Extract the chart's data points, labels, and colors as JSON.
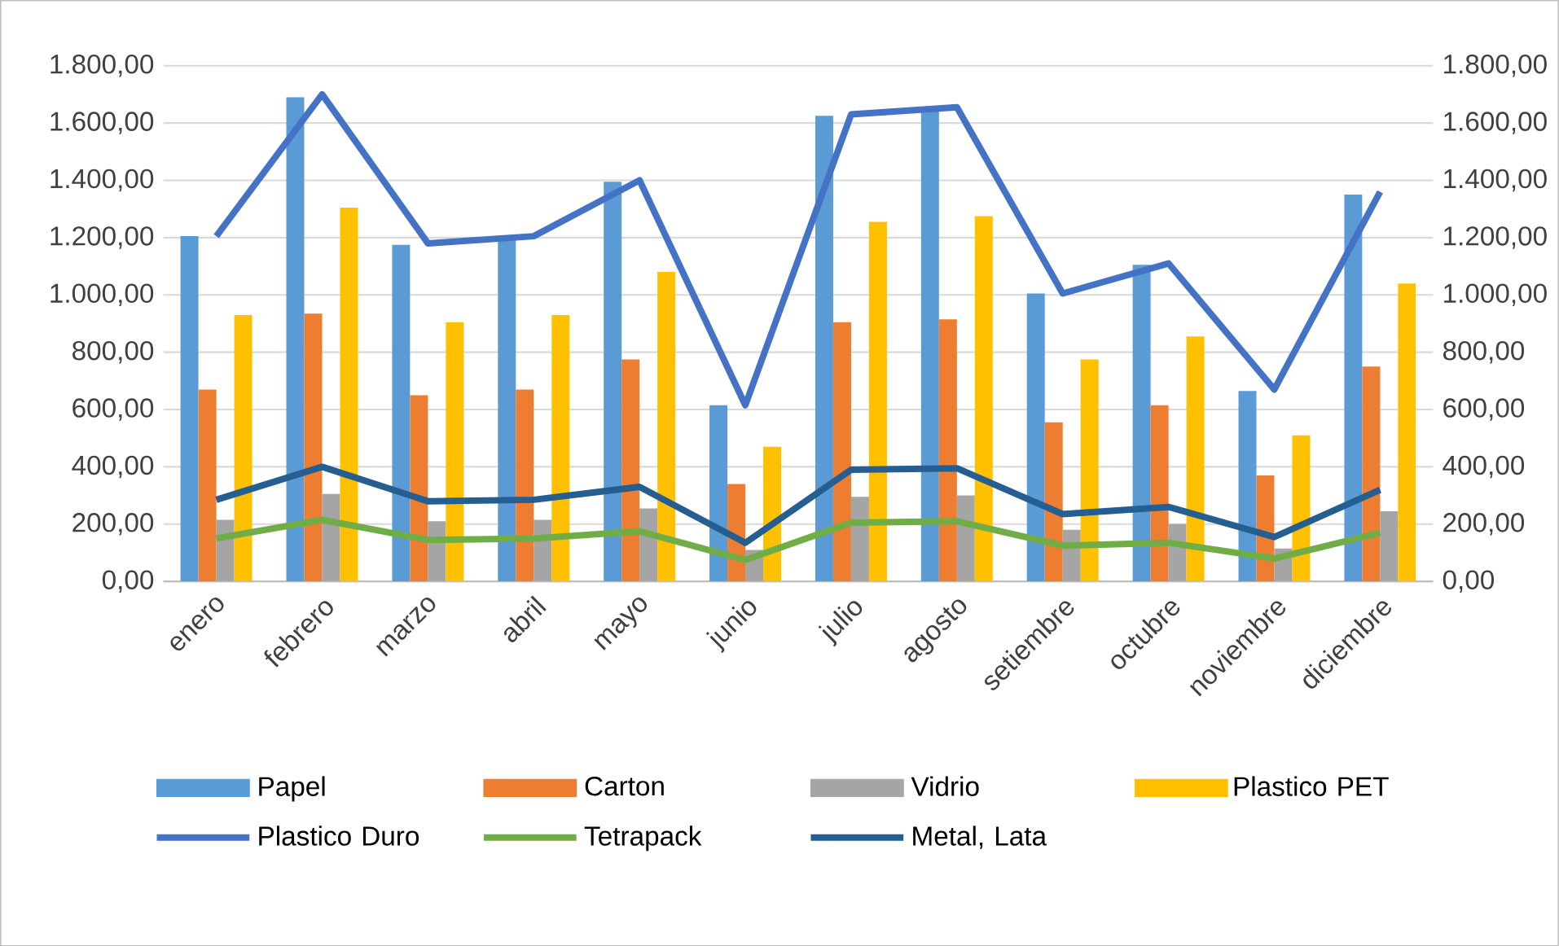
{
  "chart_data": {
    "type": "bar",
    "categories": [
      "enero",
      "febrero",
      "marzo",
      "abril",
      "mayo",
      "junio",
      "julio",
      "agosto",
      "setiembre",
      "octubre",
      "noviembre",
      "diciembre"
    ],
    "series": [
      {
        "name": "Papel",
        "color": "#5b9bd5",
        "values": [
          1205,
          1690,
          1175,
          1205,
          1395,
          615,
          1625,
          1650,
          1005,
          1105,
          665,
          1350
        ]
      },
      {
        "name": "Carton",
        "color": "#ed7d31",
        "values": [
          670,
          935,
          650,
          670,
          775,
          340,
          905,
          915,
          555,
          615,
          370,
          750
        ]
      },
      {
        "name": "Vidrio",
        "color": "#a5a5a5",
        "values": [
          215,
          305,
          210,
          215,
          255,
          110,
          295,
          300,
          180,
          200,
          115,
          245
        ]
      },
      {
        "name": "Plastico PET",
        "color": "#ffc000",
        "values": [
          930,
          1305,
          905,
          930,
          1080,
          470,
          1255,
          1275,
          775,
          855,
          510,
          1040
        ]
      },
      {
        "name": "Plastico Duro",
        "type": "line",
        "axis": "y2",
        "color": "#4472c4",
        "values": [
          1205,
          1700,
          1180,
          1205,
          1400,
          615,
          1630,
          1655,
          1005,
          1110,
          670,
          1360
        ]
      },
      {
        "name": "Tetrapack",
        "type": "line",
        "axis": "y2",
        "color": "#70ad47",
        "values": [
          150,
          215,
          145,
          150,
          175,
          75,
          205,
          210,
          125,
          135,
          80,
          170
        ]
      },
      {
        "name": "Metal, Lata",
        "type": "line",
        "axis": "y2",
        "color": "#255e91",
        "values": [
          285,
          400,
          280,
          285,
          330,
          135,
          390,
          395,
          235,
          260,
          155,
          320
        ]
      }
    ],
    "ylim": [
      0,
      1800
    ],
    "yticks": [
      {
        "value": 0,
        "label": "0,00"
      },
      {
        "value": 200,
        "label": "200,00"
      },
      {
        "value": 400,
        "label": "400,00"
      },
      {
        "value": 600,
        "label": "600,00"
      },
      {
        "value": 800,
        "label": "800,00"
      },
      {
        "value": 1000,
        "label": "1.000,00"
      },
      {
        "value": 1200,
        "label": "1.200,00"
      },
      {
        "value": 1400,
        "label": "1.400,00"
      },
      {
        "value": 1600,
        "label": "1.600,00"
      },
      {
        "value": 1800,
        "label": "1.800,00"
      }
    ],
    "y2lim": [
      0,
      1800
    ],
    "y2ticks": [
      {
        "value": 0,
        "label": "0,00"
      },
      {
        "value": 200,
        "label": "200,00"
      },
      {
        "value": 400,
        "label": "400,00"
      },
      {
        "value": 600,
        "label": "600,00"
      },
      {
        "value": 800,
        "label": "800,00"
      },
      {
        "value": 1000,
        "label": "1.000,00"
      },
      {
        "value": 1200,
        "label": "1.200,00"
      },
      {
        "value": 1400,
        "label": "1.400,00"
      },
      {
        "value": 1600,
        "label": "1.600,00"
      },
      {
        "value": 1800,
        "label": "1.800,00"
      }
    ],
    "grid": "y",
    "legend": "bottom",
    "line_style": "solid"
  }
}
